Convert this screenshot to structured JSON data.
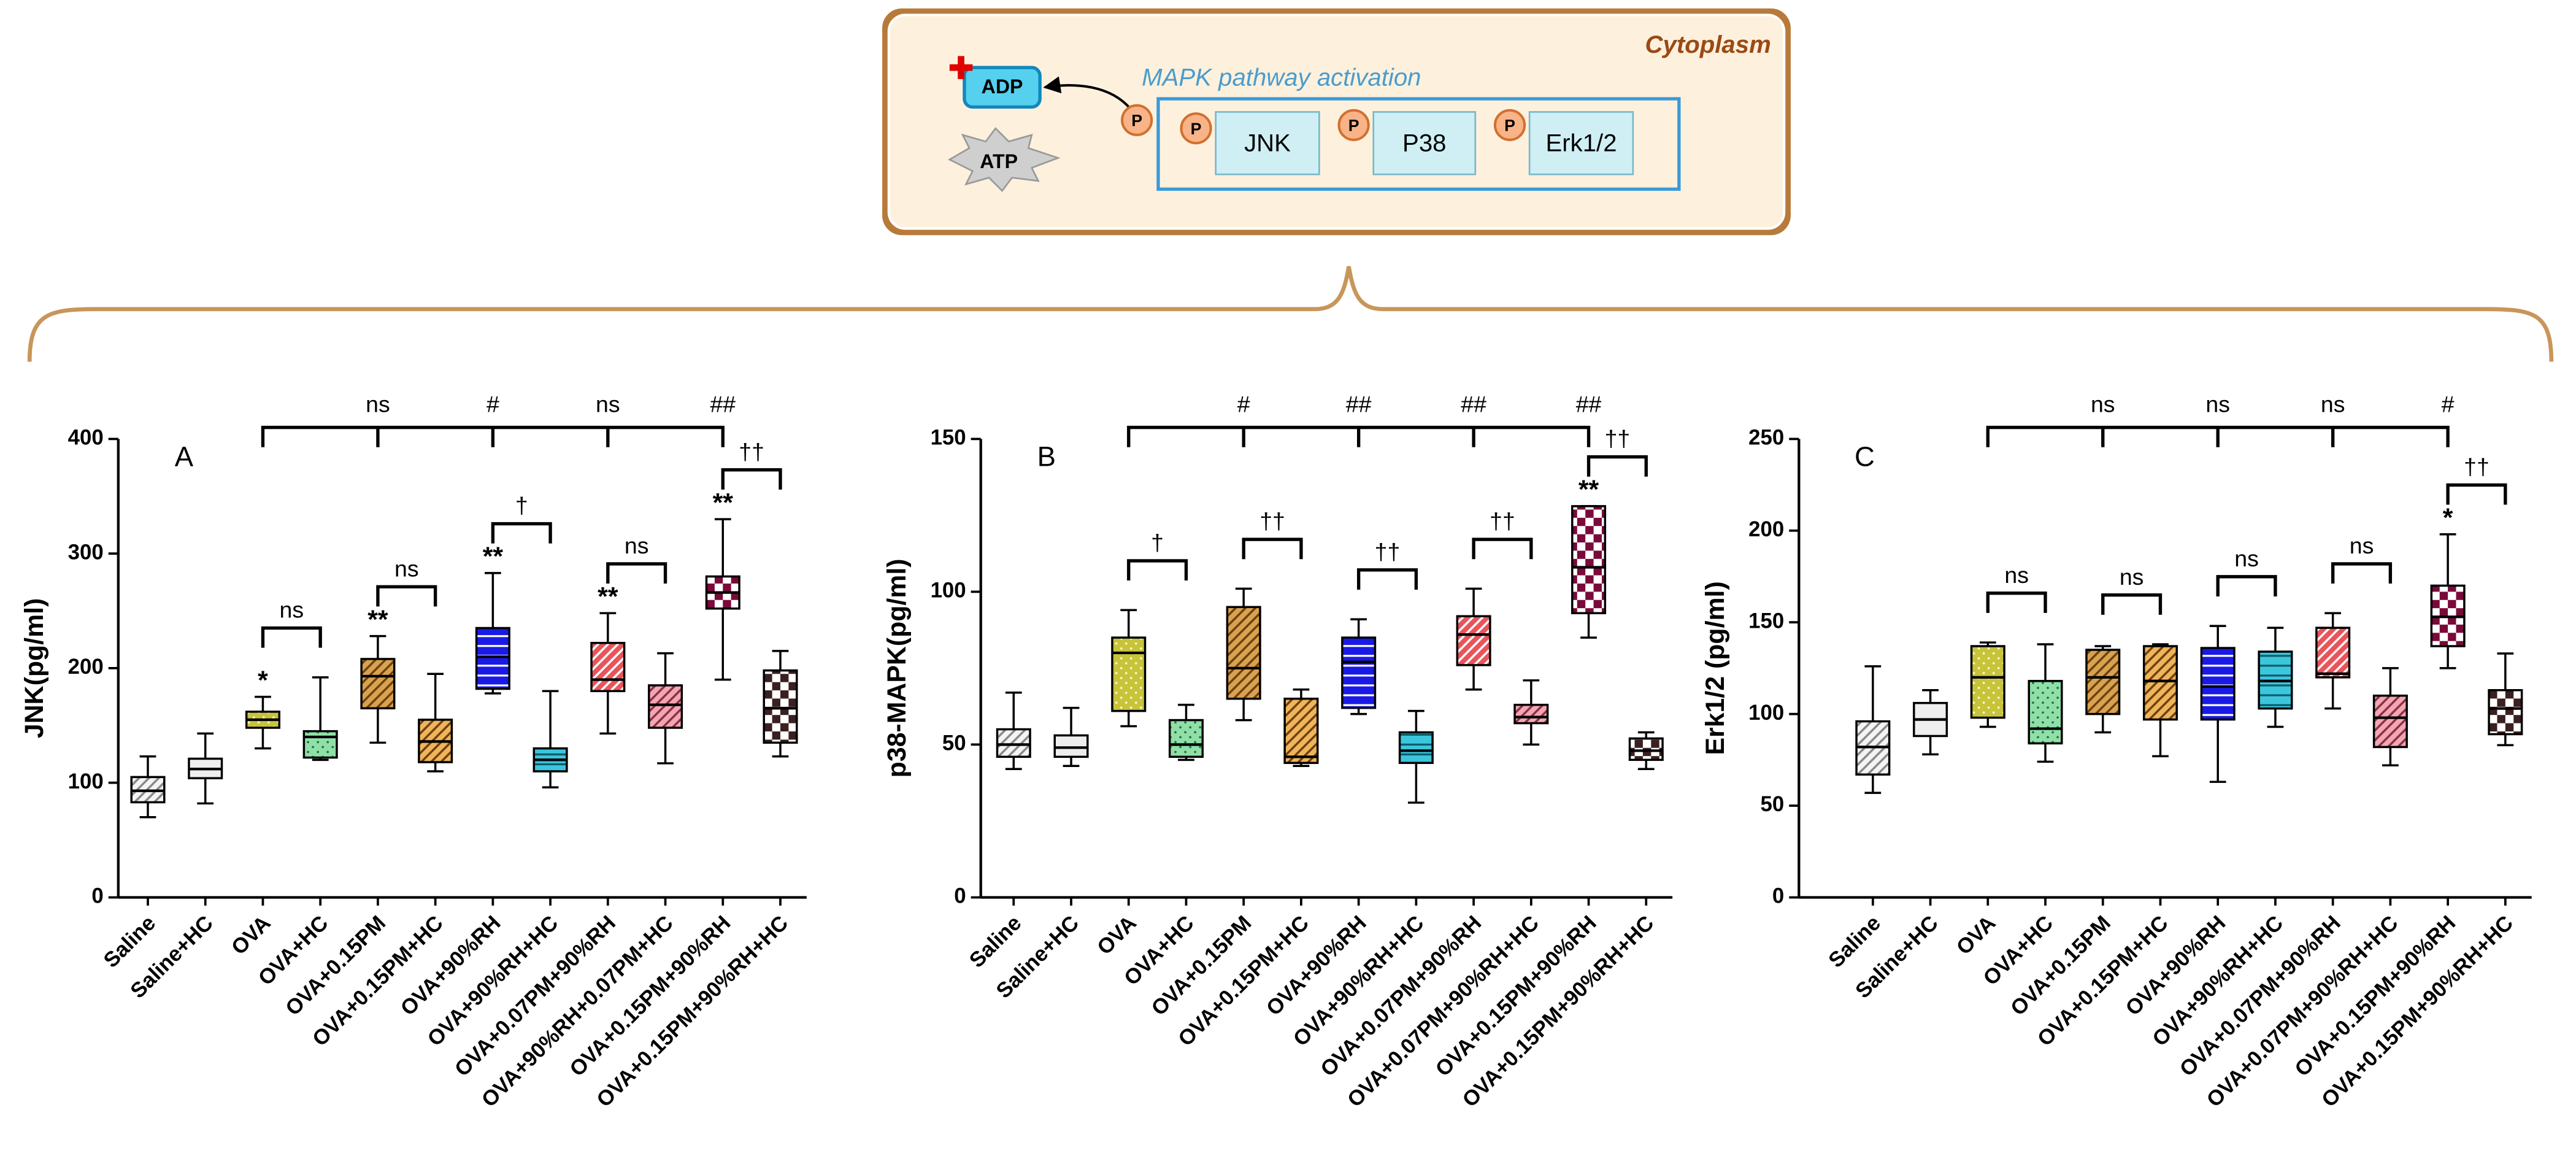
{
  "diagram": {
    "location": "Cytoplasm",
    "title": "MAPK pathway activation",
    "adp": "ADP",
    "atp": "ATP",
    "phospho": "P",
    "kinases": [
      "JNK",
      "P38",
      "Erk1/2"
    ]
  },
  "chart_data": [
    {
      "type": "box",
      "panel": "A",
      "ylabel": "JNK(pg/ml)",
      "categories": [
        "Saline",
        "Saline+HC",
        "OVA",
        "OVA+HC",
        "OVA+0.15PM",
        "OVA+0.15PM+HC",
        "OVA+90%RH",
        "OVA+90%RH+HC",
        "OVA+0.07PM+90%RH",
        "OVA+90%RH+0.07PM+HC",
        "OVA+0.15PM+90%RH",
        "OVA+0.15PM+90%RH+HC"
      ],
      "min": [
        70,
        82,
        130,
        120,
        135,
        110,
        178,
        96,
        143,
        117,
        190,
        123
      ],
      "q1": [
        83,
        104,
        148,
        122,
        165,
        118,
        182,
        110,
        180,
        148,
        252,
        135
      ],
      "median": [
        93,
        112,
        155,
        140,
        193,
        136,
        210,
        120,
        190,
        168,
        266,
        165
      ],
      "q3": [
        105,
        121,
        162,
        145,
        208,
        155,
        235,
        130,
        222,
        185,
        280,
        198
      ],
      "max": [
        123,
        143,
        175,
        192,
        228,
        195,
        283,
        180,
        248,
        213,
        330,
        215
      ],
      "significance": [
        null,
        null,
        "*",
        null,
        "**",
        null,
        "**",
        null,
        "**",
        null,
        "**",
        null
      ],
      "pair_labels": [
        null,
        null,
        null,
        "ns",
        null,
        "ns",
        null,
        "†",
        null,
        "ns",
        null,
        "††"
      ],
      "group_labels": [
        null,
        null,
        null,
        null,
        "ns",
        null,
        "#",
        null,
        "ns",
        null,
        "##",
        null
      ],
      "colors": [
        "#f4f4f4",
        "#eeeeee",
        "#c8c43a",
        "#8fe0a8",
        "#d9a24e",
        "#f0b45a",
        "#1a1ae6",
        "#3cc6dc",
        "#e8545a",
        "#f2a6b4",
        "#7a0a3a",
        "#3a2020"
      ],
      "inks": [
        "#888888",
        "#999999",
        "#f8f8d0",
        "#2a6a3a",
        "#6a4010",
        "#6a4010",
        "#ffffff",
        "#0a5a6a",
        "#ffffff",
        "#8a3040",
        "#ffffff",
        "#ffffff"
      ],
      "patterns": [
        "diagonal",
        "plain",
        "dots",
        "dots",
        "diagonal",
        "diagonal",
        "horizontal",
        "horizontal",
        "diagonal",
        "diagonal",
        "checker",
        "checker"
      ],
      "ylim": [
        0,
        400
      ],
      "yticks": [
        0,
        100,
        200,
        300,
        400
      ]
    },
    {
      "type": "box",
      "panel": "B",
      "ylabel": "p38-MAPK(pg/ml)",
      "categories": [
        "Saline",
        "Saline+HC",
        "OVA",
        "OVA+HC",
        "OVA+0.15PM",
        "OVA+0.15PM+HC",
        "OVA+90%RH",
        "OVA+90%RH+HC",
        "OVA+0.07PM+90%RH",
        "OVA+0.07PM+90%RH+HC",
        "OVA+0.15PM+90%RH",
        "OVA+0.15PM+90%RH+HC"
      ],
      "min": [
        42,
        43,
        56,
        45,
        58,
        43,
        60,
        31,
        68,
        50,
        85,
        42
      ],
      "q1": [
        46,
        46,
        61,
        46,
        65,
        44,
        62,
        44,
        76,
        57,
        93,
        45
      ],
      "median": [
        50,
        49,
        80,
        50,
        75,
        46,
        77,
        48,
        86,
        59,
        108,
        48
      ],
      "q3": [
        55,
        53,
        85,
        58,
        95,
        65,
        85,
        54,
        92,
        63,
        128,
        52
      ],
      "max": [
        67,
        62,
        94,
        63,
        101,
        68,
        91,
        61,
        101,
        71,
        128,
        54
      ],
      "significance": [
        null,
        null,
        null,
        null,
        null,
        null,
        null,
        null,
        null,
        null,
        "**",
        null
      ],
      "pair_labels": [
        null,
        null,
        null,
        "†",
        null,
        "††",
        null,
        "††",
        null,
        "††",
        null,
        "††"
      ],
      "group_labels": [
        null,
        null,
        null,
        null,
        "#",
        null,
        "##",
        null,
        "##",
        null,
        "##",
        null
      ],
      "colors": [
        "#f4f4f4",
        "#eeeeee",
        "#c8c43a",
        "#8fe0a8",
        "#d9a24e",
        "#f0b45a",
        "#1a1ae6",
        "#3cc6dc",
        "#e8545a",
        "#f2a6b4",
        "#7a0a3a",
        "#3a2020"
      ],
      "inks": [
        "#888888",
        "#999999",
        "#f8f8d0",
        "#2a6a3a",
        "#6a4010",
        "#6a4010",
        "#ffffff",
        "#0a5a6a",
        "#ffffff",
        "#8a3040",
        "#ffffff",
        "#ffffff"
      ],
      "patterns": [
        "diagonal",
        "plain",
        "dots",
        "dots",
        "diagonal",
        "diagonal",
        "horizontal",
        "horizontal",
        "diagonal",
        "diagonal",
        "checker",
        "checker"
      ],
      "ylim": [
        0,
        150
      ],
      "yticks": [
        0,
        50,
        100,
        150
      ]
    },
    {
      "type": "box",
      "panel": "C",
      "ylabel": "Erk1/2 (pg/ml)",
      "categories": [
        "Saline",
        "Saline+HC",
        "OVA",
        "OVA+HC",
        "OVA+0.15PM",
        "OVA+0.15PM+HC",
        "OVA+90%RH",
        "OVA+90%RH+HC",
        "OVA+0.07PM+90%RH",
        "OVA+0.07PM+90%RH+HC",
        "OVA+0.15PM+90%RH",
        "OVA+0.15PM+90%RH+HC"
      ],
      "min": [
        57,
        78,
        93,
        74,
        90,
        77,
        63,
        93,
        103,
        72,
        125,
        83
      ],
      "q1": [
        67,
        88,
        98,
        84,
        100,
        97,
        97,
        103,
        120,
        82,
        137,
        89
      ],
      "median": [
        82,
        97,
        120,
        92,
        120,
        118,
        115,
        118,
        122,
        98,
        153,
        103
      ],
      "q3": [
        96,
        106,
        137,
        118,
        135,
        137,
        136,
        134,
        147,
        110,
        170,
        113
      ],
      "max": [
        126,
        113,
        139,
        138,
        137,
        138,
        148,
        147,
        155,
        125,
        198,
        133
      ],
      "significance": [
        null,
        null,
        null,
        null,
        null,
        null,
        null,
        null,
        null,
        null,
        "*",
        null
      ],
      "pair_labels": [
        null,
        null,
        null,
        "ns",
        null,
        "ns",
        null,
        "ns",
        null,
        "ns",
        null,
        "††"
      ],
      "group_labels": [
        null,
        null,
        null,
        null,
        "ns",
        null,
        "ns",
        null,
        "ns",
        null,
        "#",
        null
      ],
      "colors": [
        "#f4f4f4",
        "#eeeeee",
        "#c8c43a",
        "#8fe0a8",
        "#d9a24e",
        "#f0b45a",
        "#1a1ae6",
        "#3cc6dc",
        "#e8545a",
        "#f2a6b4",
        "#7a0a3a",
        "#3a2020"
      ],
      "inks": [
        "#888888",
        "#999999",
        "#f8f8d0",
        "#2a6a3a",
        "#6a4010",
        "#6a4010",
        "#ffffff",
        "#0a5a6a",
        "#ffffff",
        "#8a3040",
        "#ffffff",
        "#ffffff"
      ],
      "patterns": [
        "diagonal",
        "plain",
        "dots",
        "dots",
        "diagonal",
        "diagonal",
        "horizontal",
        "horizontal",
        "diagonal",
        "diagonal",
        "checker",
        "checker"
      ],
      "ylim": [
        0,
        250
      ],
      "yticks": [
        0,
        50,
        100,
        150,
        200,
        250
      ]
    }
  ]
}
